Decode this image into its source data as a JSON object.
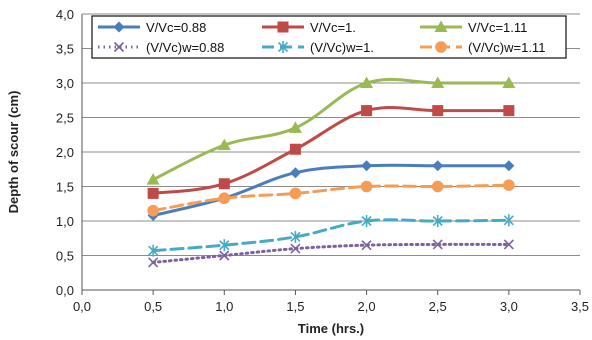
{
  "chart_data": {
    "type": "line",
    "xlabel": "Time (hrs.)",
    "ylabel": "Depth of scour (cm)",
    "xlim": [
      0,
      3.5
    ],
    "ylim": [
      0,
      4.0
    ],
    "x_ticks": [
      "0,0",
      "0,5",
      "1,0",
      "1,5",
      "2,0",
      "2,5",
      "3,0",
      "3,5"
    ],
    "y_ticks": [
      "0,0",
      "0,5",
      "1,0",
      "1,5",
      "2,0",
      "2,5",
      "3,0",
      "3,5",
      "4,0"
    ],
    "grid": "horizontal",
    "legend_position": "top",
    "x": [
      0.5,
      1.0,
      1.5,
      2.0,
      2.5,
      3.0
    ],
    "series": [
      {
        "name": "V/Vc=0.88",
        "values": [
          1.08,
          1.33,
          1.7,
          1.8,
          1.8,
          1.8
        ],
        "color": "#4a7ebb",
        "marker": "diamond",
        "line": "solid"
      },
      {
        "name": "V/Vc=1.",
        "values": [
          1.4,
          1.54,
          2.04,
          2.6,
          2.6,
          2.6
        ],
        "color": "#be4b48",
        "marker": "square",
        "line": "solid"
      },
      {
        "name": "V/Vc=1.11",
        "values": [
          1.6,
          2.1,
          2.35,
          3.0,
          3.0,
          3.0
        ],
        "color": "#98b954",
        "marker": "triangle",
        "line": "solid"
      },
      {
        "name": "(V/Vc)w=0.88",
        "values": [
          0.4,
          0.5,
          0.6,
          0.65,
          0.66,
          0.66
        ],
        "color": "#7d60a0",
        "marker": "x",
        "line": "dotted"
      },
      {
        "name": "(V/Vc)w=1.",
        "values": [
          0.57,
          0.65,
          0.77,
          1.0,
          1.0,
          1.01
        ],
        "color": "#46aac5",
        "marker": "star",
        "line": "dashed"
      },
      {
        "name": "(V/Vc)w=1.11",
        "values": [
          1.15,
          1.33,
          1.4,
          1.5,
          1.5,
          1.52
        ],
        "color": "#f59d56",
        "marker": "circle",
        "line": "dashed"
      }
    ]
  }
}
